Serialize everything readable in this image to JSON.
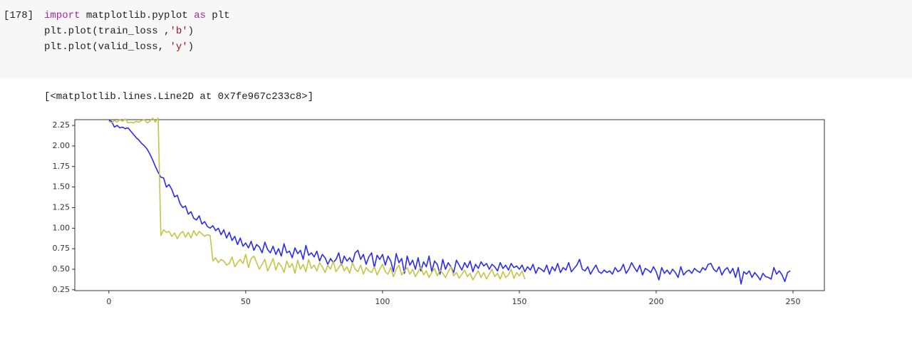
{
  "cell": {
    "prompt": "[178]",
    "lines": [
      [
        "import",
        " matplotlib.pyplot ",
        "as",
        " plt"
      ],
      [
        "plt.plot(train_loss ,",
        "'b'",
        ")"
      ],
      [
        "plt.plot(valid_loss, ",
        "'y'",
        ")"
      ]
    ]
  },
  "output": "[<matplotlib.lines.Line2D at 0x7fe967c233c8>]",
  "chart_data": {
    "type": "line",
    "xlim": [
      -12.45,
      261.45
    ],
    "xticks": [
      0,
      50,
      100,
      150,
      200,
      250
    ],
    "ylim": [
      0.24,
      2.32
    ],
    "yticks": [
      0.25,
      {
        "value": 0.5,
        "label": "0.50"
      },
      0.75,
      {
        "value": 1,
        "label": "1.00"
      },
      1.25,
      {
        "value": 1.5,
        "label": "1.50"
      },
      1.75,
      {
        "value": 2,
        "label": "2.00"
      },
      2.25
    ],
    "series": [
      {
        "color": "#2b2bf0",
        "values": [
          2.31,
          2.3,
          2.23,
          2.25,
          2.22,
          2.23,
          2.21,
          2.22,
          2.18,
          2.14,
          2.1,
          2.07,
          2.03,
          2.0,
          1.96,
          1.9,
          1.83,
          1.75,
          1.68,
          1.62,
          1.61,
          1.5,
          1.53,
          1.47,
          1.38,
          1.4,
          1.3,
          1.25,
          1.27,
          1.17,
          1.2,
          1.12,
          1.1,
          1.15,
          1.05,
          1.08,
          1.02,
          1.0,
          1.03,
          0.97,
          1.0,
          0.92,
          0.98,
          0.88,
          0.95,
          0.85,
          0.9,
          0.8,
          0.88,
          0.78,
          0.82,
          0.76,
          0.84,
          0.73,
          0.8,
          0.77,
          0.7,
          0.83,
          0.74,
          0.7,
          0.78,
          0.68,
          0.75,
          0.66,
          0.81,
          0.7,
          0.72,
          0.64,
          0.76,
          0.69,
          0.73,
          0.62,
          0.79,
          0.67,
          0.7,
          0.65,
          0.72,
          0.6,
          0.68,
          0.64,
          0.56,
          0.63,
          0.58,
          0.62,
          0.7,
          0.55,
          0.66,
          0.6,
          0.64,
          0.58,
          0.7,
          0.73,
          0.62,
          0.68,
          0.56,
          0.65,
          0.7,
          0.52,
          0.67,
          0.62,
          0.68,
          0.55,
          0.66,
          0.6,
          0.47,
          0.69,
          0.58,
          0.63,
          0.45,
          0.66,
          0.55,
          0.61,
          0.5,
          0.64,
          0.48,
          0.59,
          0.53,
          0.66,
          0.47,
          0.6,
          0.56,
          0.44,
          0.62,
          0.5,
          0.58,
          0.53,
          0.46,
          0.61,
          0.55,
          0.49,
          0.58,
          0.52,
          0.6,
          0.47,
          0.56,
          0.51,
          0.59,
          0.54,
          0.57,
          0.5,
          0.56,
          0.53,
          0.48,
          0.58,
          0.51,
          0.55,
          0.49,
          0.57,
          0.52,
          0.54,
          0.5,
          0.55,
          0.47,
          0.53,
          0.49,
          0.56,
          0.45,
          0.52,
          0.5,
          0.47,
          0.55,
          0.44,
          0.53,
          0.48,
          0.57,
          0.46,
          0.52,
          0.49,
          0.58,
          0.47,
          0.51,
          0.55,
          0.62,
          0.5,
          0.48,
          0.53,
          0.44,
          0.5,
          0.55,
          0.47,
          0.45,
          0.49,
          0.46,
          0.48,
          0.44,
          0.52,
          0.47,
          0.49,
          0.56,
          0.45,
          0.5,
          0.58,
          0.52,
          0.47,
          0.55,
          0.43,
          0.51,
          0.49,
          0.46,
          0.53,
          0.47,
          0.37,
          0.52,
          0.45,
          0.49,
          0.44,
          0.5,
          0.46,
          0.4,
          0.53,
          0.43,
          0.47,
          0.49,
          0.45,
          0.51,
          0.48,
          0.46,
          0.52,
          0.49,
          0.56,
          0.57,
          0.5,
          0.47,
          0.53,
          0.43,
          0.49,
          0.52,
          0.45,
          0.51,
          0.4,
          0.52,
          0.32,
          0.47,
          0.44,
          0.48,
          0.4,
          0.46,
          0.42,
          0.37,
          0.45,
          0.41,
          0.4,
          0.38,
          0.52,
          0.44,
          0.48,
          0.43,
          0.35,
          0.46,
          0.48
        ]
      },
      {
        "color": "#c4c447",
        "values": [
          2.3,
          2.28,
          2.31,
          2.29,
          2.32,
          2.3,
          2.33,
          2.28,
          2.29,
          2.28,
          2.3,
          2.29,
          2.31,
          2.32,
          2.28,
          2.3,
          2.34,
          2.29,
          2.34,
          0.91,
          0.98,
          0.95,
          0.96,
          0.9,
          0.94,
          0.87,
          0.93,
          0.96,
          0.89,
          0.95,
          0.88,
          0.97,
          0.91,
          0.96,
          0.93,
          0.9,
          0.92,
          0.91,
          0.6,
          0.64,
          0.58,
          0.62,
          0.6,
          0.55,
          0.57,
          0.65,
          0.53,
          0.58,
          0.62,
          0.57,
          0.68,
          0.52,
          0.63,
          0.66,
          0.58,
          0.5,
          0.56,
          0.62,
          0.48,
          0.55,
          0.63,
          0.49,
          0.58,
          0.54,
          0.46,
          0.6,
          0.52,
          0.57,
          0.45,
          0.61,
          0.5,
          0.56,
          0.47,
          0.62,
          0.51,
          0.55,
          0.48,
          0.58,
          0.53,
          0.46,
          0.55,
          0.5,
          0.6,
          0.47,
          0.52,
          0.57,
          0.48,
          0.53,
          0.45,
          0.58,
          0.5,
          0.47,
          0.55,
          0.44,
          0.52,
          0.48,
          0.46,
          0.53,
          0.43,
          0.5,
          0.56,
          0.47,
          0.44,
          0.52,
          0.41,
          0.5,
          0.55,
          0.43,
          0.48,
          0.52,
          0.44,
          0.5,
          0.41,
          0.47,
          0.53,
          0.43,
          0.48,
          0.4,
          0.46,
          0.51,
          0.42,
          0.49,
          0.45,
          0.4,
          0.47,
          0.53,
          0.42,
          0.46,
          0.39,
          0.44,
          0.49,
          0.41,
          0.45,
          0.37,
          0.43,
          0.48,
          0.4,
          0.46,
          0.38,
          0.44,
          0.5,
          0.41,
          0.45,
          0.38,
          0.47,
          0.4,
          0.43,
          0.5,
          0.39,
          0.46,
          0.42,
          0.48,
          0.38
        ]
      }
    ]
  }
}
